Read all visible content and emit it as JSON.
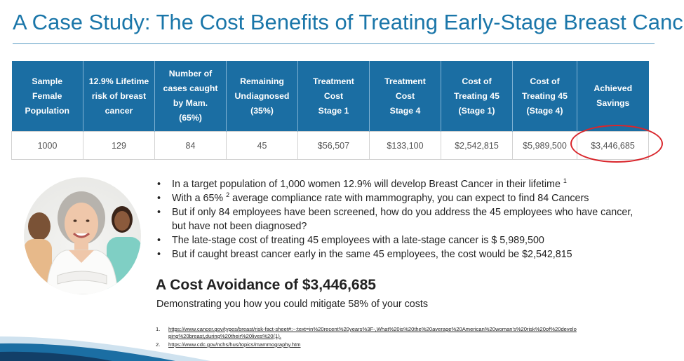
{
  "title": "A Case Study: The Cost Benefits of Treating Early-Stage Breast Cancer",
  "colors": {
    "title": "#1a76a9",
    "header_bg": "#1b6ea3",
    "highlight": "#d9262c"
  },
  "table": {
    "headers": [
      [
        "Sample",
        "Female",
        "Population"
      ],
      [
        "12.9% Lifetime",
        "risk of breast",
        "cancer"
      ],
      [
        "Number of",
        "cases caught",
        "by Mam.",
        "(65%)"
      ],
      [
        "Remaining",
        "Undiagnosed",
        "(35%)"
      ],
      [
        "Treatment",
        "Cost",
        "Stage 1"
      ],
      [
        "Treatment",
        "Cost",
        "Stage 4"
      ],
      [
        "Cost of",
        "Treating 45",
        "(Stage 1)"
      ],
      [
        "Cost of",
        "Treating 45",
        "(Stage 4)"
      ],
      [
        "Achieved",
        "Savings"
      ]
    ],
    "row": [
      "1000",
      "129",
      "84",
      "45",
      "$56,507",
      "$133,100",
      "$2,542,815",
      "$5,989,500",
      "$3,446,685"
    ]
  },
  "bullets": {
    "b1": {
      "text": "In a target population of 1,000 women 12.9% will develop Breast Cancer in their lifetime ",
      "sup": "1"
    },
    "b2": {
      "pre": "With a 65% ",
      "sup": "2",
      "post": " average compliance rate with mammography, you can expect to find 84 Cancers"
    },
    "b3": "But if only 84 employees have been screened, how do you address the 45 employees who have cancer, but have not been diagnosed?",
    "b4": "The late-stage cost of treating 45 employees with a late-stage cancer is $ 5,989,500",
    "b5": "But if caught breast cancer early in the same 45 employees, the cost would be $2,542,815"
  },
  "headline": "A Cost Avoidance of $3,446,685",
  "subheadline": "Demonstrating you how you could mitigate 58% of your costs",
  "references": [
    {
      "num": "1.",
      "text": "https://www.cancer.gov/types/breast/risk-fact-sheet#:~:text=in%20recent%20years%3F-,What%20is%20the%20average%20American%20woman's%20risk%20of%20developing%20breast,during%20their%20lives%20(1)."
    },
    {
      "num": "2.",
      "text": "https://www.cdc.gov/nchs/hus/topics/mammography.htm"
    }
  ],
  "photo_icon": "women-group-photo"
}
